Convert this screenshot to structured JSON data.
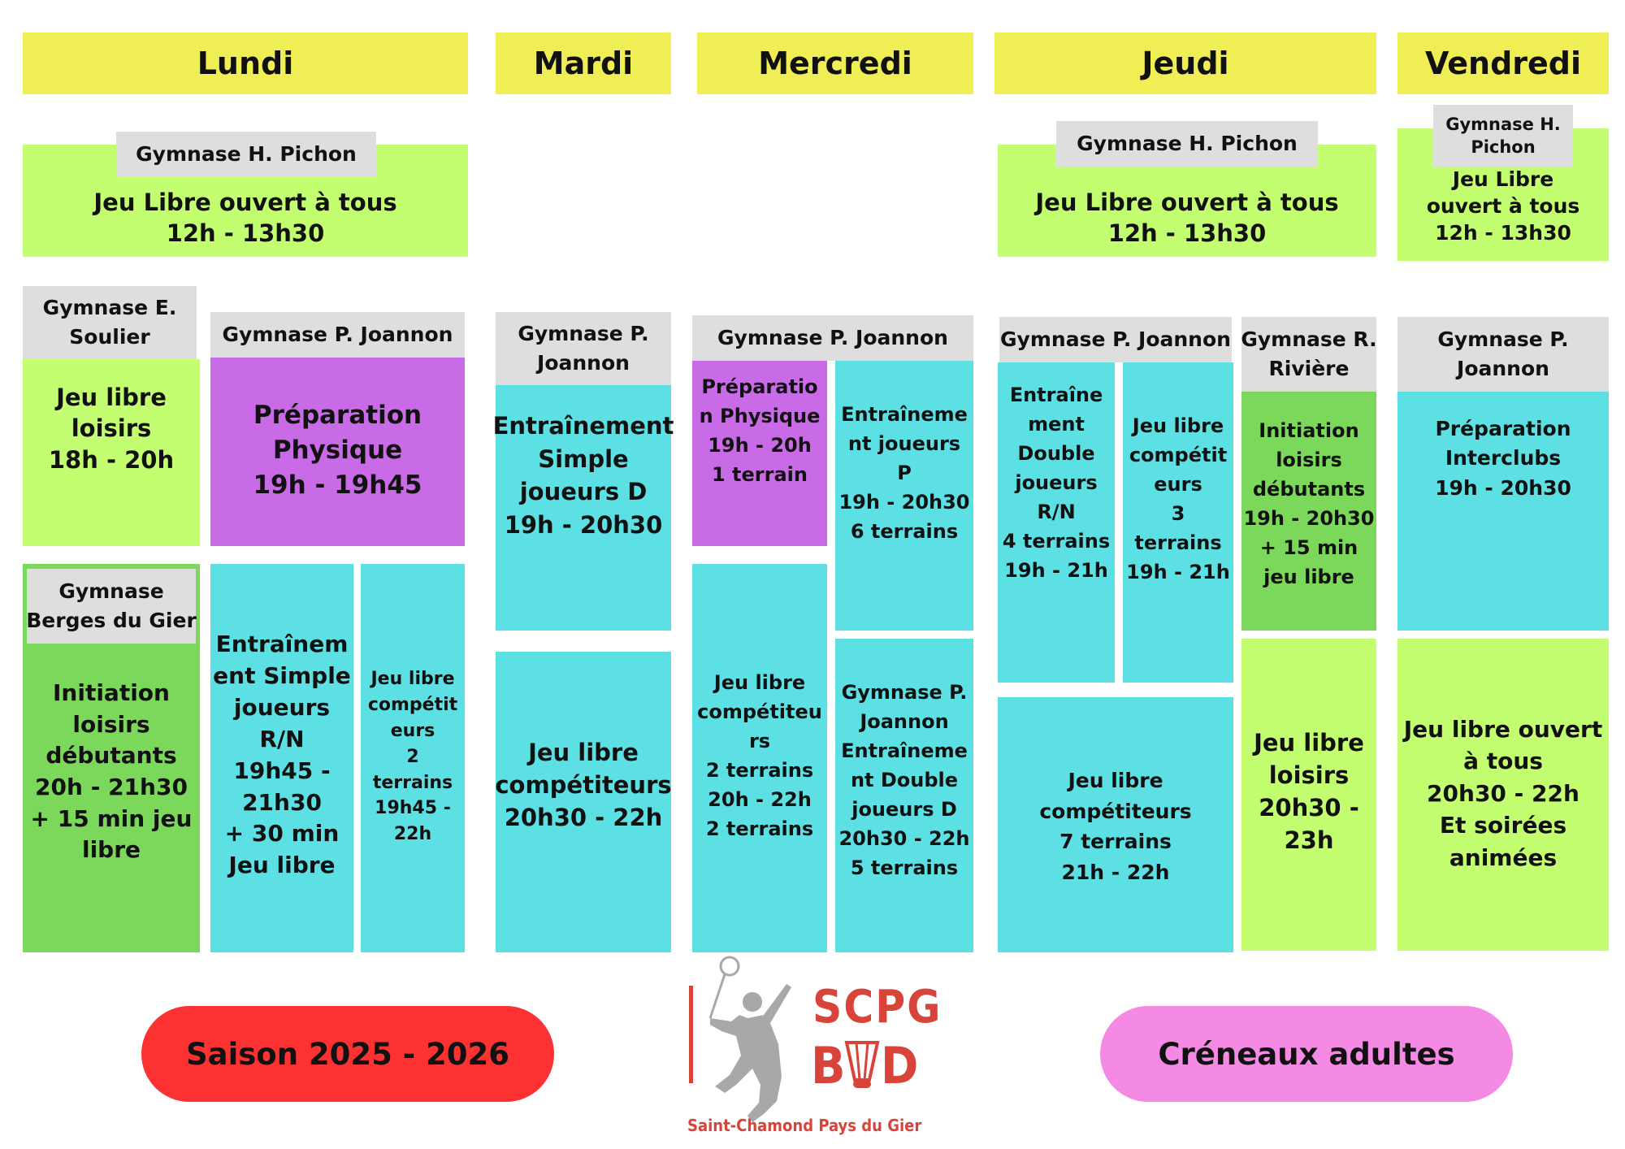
{
  "days": [
    "Lundi",
    "Mardi",
    "Mercredi",
    "Jeudi",
    "Vendredi"
  ],
  "noon": {
    "lundi": {
      "gym": "Gymnase H. Pichon",
      "lines": [
        "Jeu Libre ouvert à tous",
        "12h - 13h30"
      ]
    },
    "jeudi": {
      "gym": "Gymnase H. Pichon",
      "lines": [
        "Jeu Libre ouvert à tous",
        "12h - 13h30"
      ]
    },
    "vendredi": {
      "gym_lines": [
        "Gymnase H.",
        "Pichon"
      ],
      "lines": [
        "Jeu Libre",
        "ouvert à tous",
        "12h - 13h30"
      ]
    }
  },
  "lundi": {
    "soulier": {
      "gym_lines": [
        "Gymnase E.",
        "Soulier"
      ],
      "lines": [
        "Jeu libre",
        "loisirs",
        "18h - 20h"
      ]
    },
    "joannon": {
      "gym": "Gymnase P. Joannon",
      "lines": [
        "Préparation",
        "Physique",
        "19h - 19h45"
      ]
    },
    "berges": {
      "gym_lines": [
        "Gymnase",
        "Berges du Gier"
      ],
      "lines": [
        "Initiation",
        "loisirs",
        "débutants",
        "20h - 21h30",
        "+ 15 min jeu",
        "libre"
      ]
    },
    "simple_rn": {
      "lines": [
        "Entraînem",
        "ent Simple",
        "joueurs",
        "R/N",
        "19h45 -",
        "21h30",
        "+ 30 min",
        "Jeu libre"
      ]
    },
    "competiteurs": {
      "lines": [
        "Jeu libre",
        "compétit",
        "eurs",
        "2",
        "terrains",
        "19h45 -",
        "22h"
      ]
    }
  },
  "mardi": {
    "gym_lines": [
      "Gymnase P.",
      "Joannon"
    ],
    "simple_d": {
      "lines": [
        "Entraînement",
        "Simple",
        "joueurs D",
        "19h - 20h30"
      ]
    },
    "competiteurs": {
      "lines": [
        "Jeu libre",
        "compétiteurs",
        "20h30 - 22h"
      ]
    }
  },
  "mercredi": {
    "gym": "Gymnase P. Joannon",
    "prep": {
      "lines": [
        "Préparatio",
        "n Physique",
        "19h - 20h",
        "1 terrain"
      ]
    },
    "joueurs_p": {
      "lines": [
        "Entraîneme",
        "nt joueurs",
        "P",
        "19h - 20h30",
        "6 terrains"
      ]
    },
    "competiteurs": {
      "lines": [
        "Jeu libre",
        "compétiteu",
        "rs",
        "2 terrains",
        "20h - 22h",
        "2 terrains"
      ]
    },
    "double_d": {
      "lines": [
        "Gymnase P.",
        "Joannon",
        "Entraîneme",
        "nt Double",
        "joueurs D",
        "20h30 - 22h",
        "5 terrains"
      ]
    }
  },
  "jeudi": {
    "joannon_gym": "Gymnase P. Joannon",
    "double_rn": {
      "lines": [
        "Entraîne",
        "ment",
        "Double",
        "joueurs",
        "R/N",
        "4 terrains",
        "19h - 21h"
      ]
    },
    "competiteurs_3": {
      "lines": [
        "Jeu libre",
        "compétit",
        "eurs",
        "3",
        "terrains",
        "19h - 21h"
      ]
    },
    "riviere": {
      "gym_lines": [
        "Gymnase R.",
        "Rivière"
      ],
      "lines": [
        "Initiation",
        "loisirs",
        "débutants",
        "19h - 20h30",
        "+ 15 min",
        "jeu libre"
      ]
    },
    "competiteurs_7": {
      "lines": [
        "Jeu libre",
        "compétiteurs",
        "7 terrains",
        "21h - 22h"
      ]
    },
    "loisirs": {
      "lines": [
        "Jeu libre",
        "loisirs",
        "20h30 -",
        "23h"
      ]
    }
  },
  "vendredi": {
    "gym_lines": [
      "Gymnase P.",
      "Joannon"
    ],
    "interclubs": {
      "lines": [
        "Préparation",
        "Interclubs",
        "19h - 20h30"
      ]
    },
    "ouvert": {
      "lines": [
        "Jeu libre ouvert",
        "à tous",
        "20h30 - 22h",
        "Et soirées",
        "animées"
      ]
    }
  },
  "footer": {
    "season": "Saison 2025 - 2026",
    "title": "Créneaux adultes",
    "logo_line1": "SCPG",
    "logo_b": "B",
    "logo_d": "D",
    "logo_caption": "Saint-Chamond Pays du Gier"
  },
  "colors": {
    "day": "#f0ee55",
    "label": "#dedede",
    "lime": "#c3fd70",
    "green": "#7cd85a",
    "purple": "#c96ae6",
    "cyan": "#5ce0e4",
    "season_pill": "#fc3232",
    "title_pill": "#f48ae4",
    "logo": "#d9443a",
    "logo_figure": "#a8a8a8"
  }
}
